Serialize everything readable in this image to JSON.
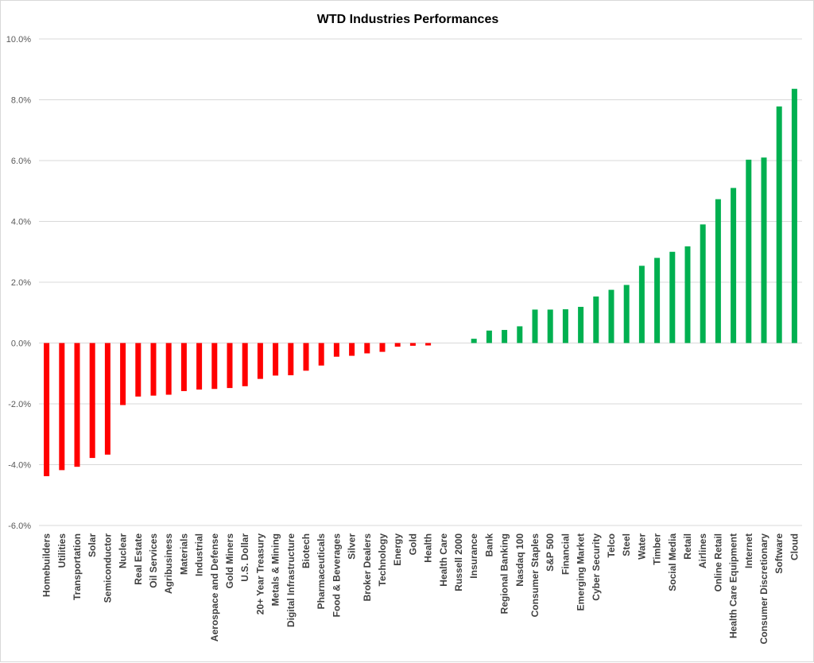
{
  "chart_data": {
    "type": "bar",
    "title": "WTD Industries Performances",
    "xlabel": "",
    "ylabel": "",
    "ylim": [
      -6.0,
      10.0
    ],
    "yticks": [
      10.0,
      8.0,
      6.0,
      4.0,
      2.0,
      0.0,
      -2.0,
      -4.0,
      -6.0
    ],
    "ytick_labels": [
      "10.0%",
      "8.0%",
      "6.0%",
      "4.0%",
      "2.0%",
      "0.0%",
      "-2.0%",
      "-4.0%",
      "-6.0%"
    ],
    "grid": true,
    "legend": "none",
    "colors": {
      "negative": "#ff0000",
      "positive": "#00b050",
      "grid": "#d9d9d9"
    },
    "categories": [
      "Homebuilders",
      "Utilities",
      "Transportation",
      "Solar",
      "Semiconductor",
      "Nuclear",
      "Real Estate",
      "Oil Services",
      "Agribusiness",
      "Materials",
      "Industrial",
      "Aerospace and Defense",
      "Gold Miners",
      "U.S. Dollar",
      "20+ Year Treasury",
      "Metals & Mining",
      "Digital Infrastructure",
      "Biotech",
      "Pharmaceuticals",
      "Food & Beverages",
      "Silver",
      "Broker Dealers",
      "Technology",
      "Energy",
      "Gold",
      "Health",
      "Health Care",
      "Russell 2000",
      "Insurance",
      "Bank",
      "Regional Banking",
      "Nasdaq 100",
      "Consumer Staples",
      "S&P 500",
      "Financial",
      "Emerging Market",
      "Cyber Security",
      "Telco",
      "Steel",
      "Water",
      "Timber",
      "Social Media",
      "Retail",
      "Airlines",
      "Online Retail",
      "Health Care Equipment",
      "Internet",
      "Consumer Discretionary",
      "Software",
      "Cloud"
    ],
    "values": [
      -4.38,
      -4.18,
      -4.07,
      -3.78,
      -3.67,
      -2.04,
      -1.76,
      -1.73,
      -1.7,
      -1.58,
      -1.53,
      -1.51,
      -1.48,
      -1.42,
      -1.18,
      -1.07,
      -1.06,
      -0.91,
      -0.74,
      -0.45,
      -0.42,
      -0.34,
      -0.29,
      -0.12,
      -0.09,
      -0.08,
      0.0,
      0.0,
      0.14,
      0.41,
      0.43,
      0.55,
      1.1,
      1.1,
      1.11,
      1.19,
      1.53,
      1.75,
      1.91,
      2.54,
      2.8,
      3.0,
      3.18,
      3.9,
      4.73,
      5.1,
      6.03,
      6.1,
      7.78,
      8.36
    ]
  }
}
